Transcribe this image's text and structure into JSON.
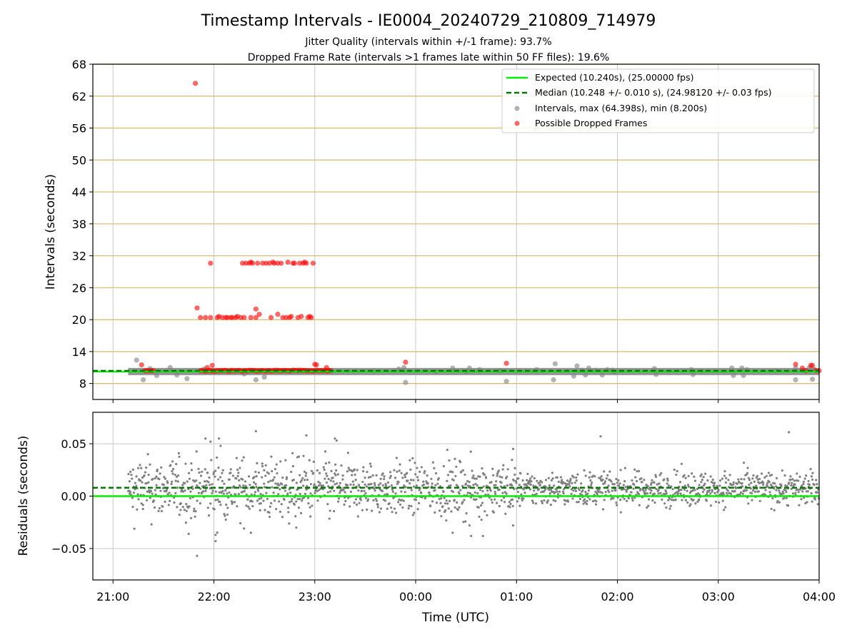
{
  "title": "Timestamp Intervals - IE0004_20240729_210809_714979",
  "subtitle_1": "Jitter Quality (intervals within +/-1 frame): 93.7%",
  "subtitle_2": "Dropped Frame Rate (intervals >1 frames late within 50 FF files): 19.6%",
  "colors": {
    "expected": "#00ee00",
    "median": "#007700",
    "intervals": "#808080",
    "dropped": "#ff0000",
    "hgrid": "#d4b96a",
    "vgrid": "#c8c8c8"
  },
  "chart_data": [
    {
      "type": "scatter",
      "panel": "intervals",
      "ylabel": "Intervals (seconds)",
      "xlim": [
        "20:48",
        "04:00"
      ],
      "ylim": [
        5,
        68
      ],
      "yticks": [
        "8",
        "14",
        "20",
        "26",
        "32",
        "38",
        "44",
        "50",
        "56",
        "62",
        "68"
      ],
      "xticks": [
        "21:00",
        "22:00",
        "23:00",
        "00:00",
        "01:00",
        "02:00",
        "03:00",
        "04:00"
      ],
      "grid": true,
      "legend_position": "top-right",
      "legend": [
        "Expected (10.240s), (25.00000 fps)",
        "Median (10.248 +/- 0.010 s), (24.98120 +/- 0.03 fps)",
        "Intervals, max (64.398s), min (8.200s)",
        "Possible Dropped Frames"
      ],
      "expected_line": 10.24,
      "median_line": 10.248,
      "intervals_band": {
        "from": "21:09",
        "to": "04:00",
        "value": 10.25
      },
      "interval_outliers": [
        [
          "21:14",
          12.4
        ],
        [
          "21:18",
          8.7
        ],
        [
          "21:22",
          10.8
        ],
        [
          "21:26",
          9.5
        ],
        [
          "21:34",
          11.0
        ],
        [
          "21:38",
          9.6
        ],
        [
          "21:44",
          8.9
        ],
        [
          "21:54",
          10.7
        ],
        [
          "22:18",
          9.8
        ],
        [
          "22:25",
          8.7
        ],
        [
          "22:30",
          9.2
        ],
        [
          "23:35",
          10.3
        ],
        [
          "23:50",
          10.7
        ],
        [
          "23:53",
          11.0
        ],
        [
          "23:54",
          8.2
        ],
        [
          "00:12",
          10.2
        ],
        [
          "00:22",
          10.9
        ],
        [
          "00:30",
          10.2
        ],
        [
          "00:32",
          10.9
        ],
        [
          "00:38",
          10.6
        ],
        [
          "00:50",
          10.4
        ],
        [
          "00:54",
          8.4
        ],
        [
          "01:12",
          10.6
        ],
        [
          "01:22",
          8.7
        ],
        [
          "01:23",
          11.7
        ],
        [
          "01:34",
          9.4
        ],
        [
          "01:36",
          11.3
        ],
        [
          "01:39",
          10.5
        ],
        [
          "01:41",
          9.6
        ],
        [
          "01:43",
          10.9
        ],
        [
          "01:47",
          10.5
        ],
        [
          "01:51",
          9.6
        ],
        [
          "01:54",
          10.6
        ],
        [
          "01:57",
          10.5
        ],
        [
          "01:58",
          10.1
        ],
        [
          "02:22",
          10.8
        ],
        [
          "02:23",
          9.7
        ],
        [
          "02:44",
          10.6
        ],
        [
          "02:45",
          9.7
        ],
        [
          "02:50",
          10.3
        ],
        [
          "03:08",
          10.9
        ],
        [
          "03:09",
          9.5
        ],
        [
          "03:14",
          10.9
        ],
        [
          "03:15",
          9.5
        ],
        [
          "03:17",
          10.6
        ],
        [
          "03:34",
          10.4
        ],
        [
          "03:46",
          10.9
        ],
        [
          "03:46",
          8.7
        ],
        [
          "03:51",
          10.4
        ],
        [
          "03:54",
          10.9
        ],
        [
          "03:56",
          8.8
        ],
        [
          "03:57",
          10.7
        ]
      ],
      "dropped_frames": [
        [
          "21:17",
          11.5
        ],
        [
          "21:19",
          10.4
        ],
        [
          "21:20",
          10.4
        ],
        [
          "21:21",
          10.4
        ],
        [
          "21:22",
          10.4
        ],
        [
          "21:23",
          10.4
        ],
        [
          "21:24",
          10.4
        ],
        [
          "21:49",
          64.4
        ],
        [
          "21:50",
          22.2
        ],
        [
          "21:52",
          20.4
        ],
        [
          "21:55",
          20.4
        ],
        [
          "21:56",
          11.0
        ],
        [
          "21:58",
          30.6
        ],
        [
          "21:58",
          20.4
        ],
        [
          "21:59",
          11.4
        ],
        [
          "22:02",
          20.4
        ],
        [
          "22:03",
          20.6
        ],
        [
          "22:05",
          20.4
        ],
        [
          "22:07",
          20.4
        ],
        [
          "22:08",
          20.4
        ],
        [
          "22:10",
          20.4
        ],
        [
          "22:11",
          20.4
        ],
        [
          "22:13",
          20.4
        ],
        [
          "22:14",
          20.6
        ],
        [
          "22:16",
          20.4
        ],
        [
          "22:17",
          30.6
        ],
        [
          "22:18",
          20.4
        ],
        [
          "22:19",
          30.6
        ],
        [
          "22:21",
          30.6
        ],
        [
          "22:22",
          20.4
        ],
        [
          "22:22",
          30.8
        ],
        [
          "22:23",
          30.6
        ],
        [
          "22:25",
          22.0
        ],
        [
          "22:25",
          20.4
        ],
        [
          "22:26",
          30.6
        ],
        [
          "22:27",
          21.0
        ],
        [
          "22:29",
          30.6
        ],
        [
          "22:31",
          30.6
        ],
        [
          "22:33",
          30.6
        ],
        [
          "22:34",
          20.4
        ],
        [
          "22:35",
          30.8
        ],
        [
          "22:36",
          30.6
        ],
        [
          "22:38",
          21.0
        ],
        [
          "22:38",
          30.6
        ],
        [
          "22:40",
          30.6
        ],
        [
          "22:41",
          20.4
        ],
        [
          "22:43",
          20.4
        ],
        [
          "22:44",
          30.8
        ],
        [
          "22:45",
          20.4
        ],
        [
          "22:46",
          20.6
        ],
        [
          "22:47",
          30.6
        ],
        [
          "22:48",
          30.6
        ],
        [
          "22:50",
          20.4
        ],
        [
          "22:51",
          30.6
        ],
        [
          "22:52",
          20.6
        ],
        [
          "22:53",
          30.6
        ],
        [
          "22:54",
          30.8
        ],
        [
          "22:55",
          30.6
        ],
        [
          "22:56",
          20.4
        ],
        [
          "22:57",
          20.6
        ],
        [
          "22:58",
          20.4
        ],
        [
          "22:59",
          30.6
        ],
        [
          "23:00",
          11.6
        ],
        [
          "23:01",
          11.5
        ],
        [
          "23:07",
          11.0
        ],
        [
          "23:54",
          12.0
        ],
        [
          "00:54",
          11.8
        ],
        [
          "03:46",
          11.6
        ],
        [
          "03:50",
          10.9
        ],
        [
          "03:52",
          10.4
        ],
        [
          "03:55",
          11.4
        ],
        [
          "03:56",
          11.4
        ],
        [
          "03:58",
          10.4
        ],
        [
          "04:00",
          10.4
        ]
      ],
      "dropped_dense_band": {
        "from": "21:52",
        "to": "23:10",
        "value": 10.4
      }
    },
    {
      "type": "scatter",
      "panel": "residuals",
      "ylabel": "Residuals (seconds)",
      "xlabel": "Time (UTC)",
      "xlim": [
        "20:48",
        "04:00"
      ],
      "ylim": [
        -0.08,
        0.08
      ],
      "yticks": [
        "−0.05",
        "0.00",
        "0.05"
      ],
      "yticks_values": [
        -0.05,
        0.0,
        0.05
      ],
      "xticks": [
        "21:00",
        "22:00",
        "23:00",
        "00:00",
        "01:00",
        "02:00",
        "03:00",
        "04:00"
      ],
      "grid": true,
      "expected_line": 0.0,
      "median_line": 0.008,
      "residuals_range": {
        "from": "21:09",
        "to": "04:00",
        "typical_spread": 0.012,
        "min": -0.057,
        "max": 0.062
      },
      "residual_outliers": [
        [
          "21:50",
          -0.057
        ],
        [
          "21:45",
          -0.036
        ],
        [
          "21:55",
          0.055
        ],
        [
          "21:58",
          0.052
        ],
        [
          "22:01",
          -0.037
        ],
        [
          "22:01",
          -0.043
        ],
        [
          "22:03",
          0.055
        ],
        [
          "22:04",
          0.048
        ],
        [
          "22:22",
          -0.035
        ],
        [
          "22:25",
          0.062
        ],
        [
          "22:49",
          -0.03
        ],
        [
          "22:55",
          0.058
        ],
        [
          "23:12",
          0.055
        ],
        [
          "23:13",
          0.053
        ],
        [
          "00:22",
          -0.035
        ],
        [
          "00:32",
          -0.028
        ],
        [
          "00:33",
          -0.038
        ],
        [
          "00:40",
          -0.038
        ],
        [
          "00:58",
          -0.028
        ],
        [
          "00:58",
          0.045
        ],
        [
          "01:50",
          0.057
        ],
        [
          "03:42",
          0.061
        ]
      ]
    }
  ]
}
